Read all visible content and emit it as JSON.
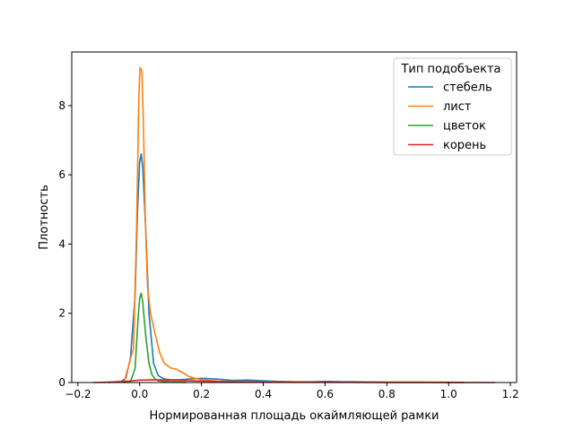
{
  "chart_data": {
    "type": "line",
    "title": "",
    "xlabel": "Нормированная площадь окаймляющей рамки",
    "ylabel": "Плотность",
    "xlim": [
      -0.22,
      1.22
    ],
    "ylim": [
      0,
      9.55
    ],
    "x_ticks": [
      -0.2,
      0.0,
      0.2,
      0.4,
      0.6,
      0.8,
      1.0,
      1.2
    ],
    "x_tick_labels": [
      "−0.2",
      "0.0",
      "0.2",
      "0.4",
      "0.6",
      "0.8",
      "1.0",
      "1.2"
    ],
    "y_ticks": [
      0,
      2,
      4,
      6,
      8
    ],
    "y_tick_labels": [
      "0",
      "2",
      "4",
      "6",
      "8"
    ],
    "grid": false,
    "legend": {
      "title": "Тип подобъекта",
      "placement": "top-right"
    },
    "series": [
      {
        "name": "стебель",
        "color": "#1f77b4",
        "x": [
          -0.1,
          -0.06,
          -0.045,
          -0.03,
          -0.015,
          -0.007,
          0.0,
          0.005,
          0.01,
          0.02,
          0.03,
          0.045,
          0.06,
          0.08,
          0.1,
          0.13,
          0.16,
          0.2,
          0.25,
          0.3,
          0.35,
          0.4,
          0.45,
          0.5,
          0.55,
          0.6,
          0.7,
          0.8,
          0.9,
          1.0,
          1.05
        ],
        "y": [
          0.0,
          0.03,
          0.12,
          0.7,
          2.5,
          5.0,
          6.4,
          6.6,
          6.2,
          4.3,
          2.0,
          0.55,
          0.2,
          0.1,
          0.08,
          0.08,
          0.1,
          0.12,
          0.1,
          0.06,
          0.07,
          0.05,
          0.03,
          0.02,
          0.02,
          0.03,
          0.02,
          0.01,
          0.01,
          0.0,
          0.0
        ]
      },
      {
        "name": "лист",
        "color": "#ff7f0e",
        "x": [
          -0.12,
          -0.05,
          -0.02,
          -0.01,
          -0.003,
          0.001,
          0.004,
          0.007,
          0.012,
          0.018,
          0.025,
          0.035,
          0.05,
          0.065,
          0.08,
          0.1,
          0.12,
          0.14,
          0.16,
          0.18,
          0.2,
          0.25,
          0.3,
          0.35,
          0.4,
          0.5,
          0.6,
          0.8,
          1.0,
          1.05
        ],
        "y": [
          0.0,
          0.03,
          1.0,
          4.5,
          8.2,
          9.1,
          9.05,
          9.0,
          7.5,
          4.8,
          2.8,
          2.0,
          1.4,
          0.85,
          0.55,
          0.42,
          0.38,
          0.28,
          0.17,
          0.12,
          0.08,
          0.04,
          0.03,
          0.03,
          0.02,
          0.02,
          0.01,
          0.01,
          0.01,
          0.0
        ]
      },
      {
        "name": "цветок",
        "color": "#2ca02c",
        "x": [
          -0.05,
          -0.03,
          -0.015,
          -0.005,
          0.0,
          0.005,
          0.01,
          0.02,
          0.03,
          0.04,
          0.05,
          0.06,
          0.08,
          0.1,
          0.12,
          0.15
        ],
        "y": [
          0.0,
          0.03,
          0.4,
          1.9,
          2.45,
          2.58,
          2.3,
          1.3,
          0.55,
          0.22,
          0.1,
          0.05,
          0.03,
          0.02,
          0.01,
          0.0
        ]
      },
      {
        "name": "корень",
        "color": "#d62728",
        "x": [
          -0.15,
          -0.1,
          -0.05,
          0.0,
          0.05,
          0.1,
          0.15,
          0.2,
          0.3,
          0.4,
          0.6,
          0.8,
          1.0,
          1.15
        ],
        "y": [
          0.0,
          0.01,
          0.03,
          0.07,
          0.08,
          0.07,
          0.05,
          0.04,
          0.02,
          0.01,
          0.01,
          0.0,
          0.0,
          0.0
        ]
      }
    ]
  }
}
